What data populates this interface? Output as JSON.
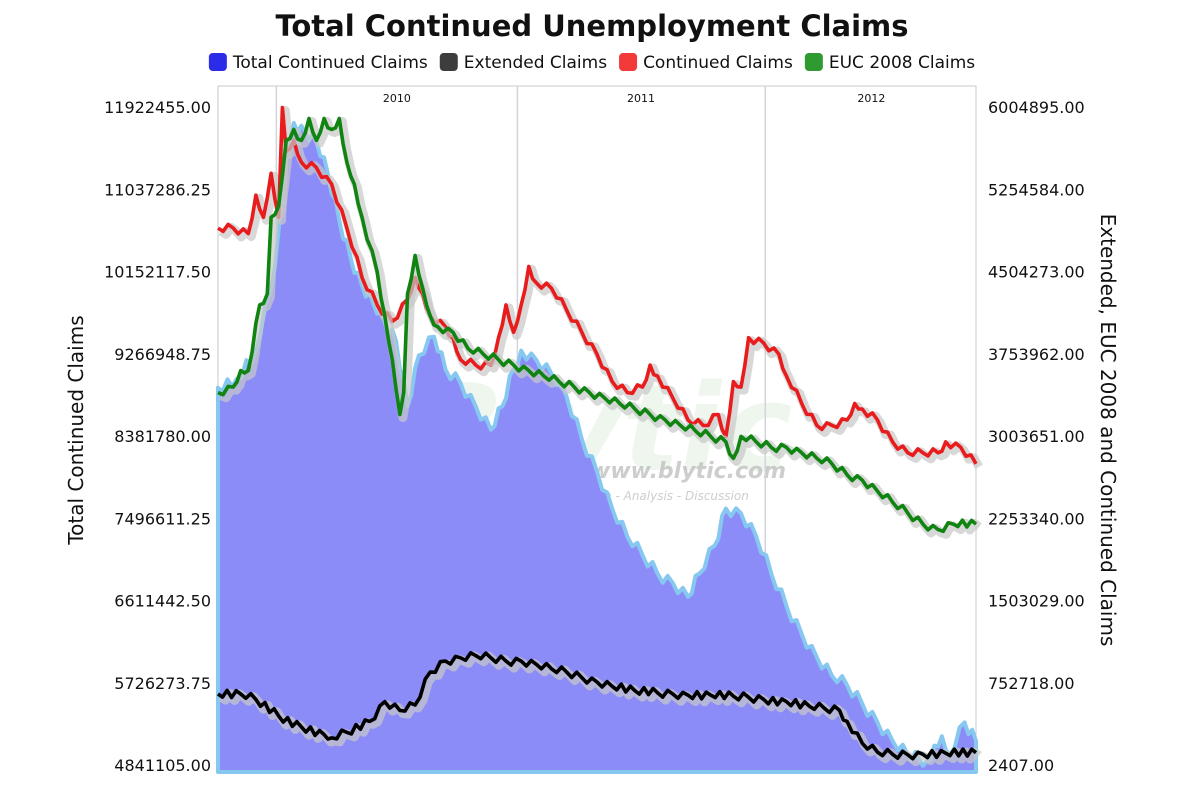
{
  "chart_data": {
    "type": "line",
    "title": "Total Continued Unemployment Claims",
    "ylabel_left": "Total Continued Claims",
    "ylabel_right": "Extended, EUC 2008 and Continued Claims",
    "x_period_labels": [
      "2010",
      "2011",
      "2012"
    ],
    "x_range": [
      "2009-09",
      "2012-11"
    ],
    "left_ticks": [
      "11922455.00",
      "11037286.25",
      "10152117.50",
      "9266948.75",
      "8381780.00",
      "7496611.25",
      "6611442.50",
      "5726273.75",
      "4841105.00"
    ],
    "right_ticks": [
      "6004895.00",
      "5254584.00",
      "4504273.00",
      "3753962.00",
      "3003651.00",
      "2253340.00",
      "1503029.00",
      "752718.00",
      "2407.00"
    ],
    "ylim_left": [
      4841105,
      11922455
    ],
    "ylim_right": [
      2407,
      6004895
    ],
    "legend_position": "top",
    "watermark": {
      "text": "Blytic",
      "url": "www.blytic.com",
      "tagline": "Data - Analysis - Discussion"
    },
    "series": [
      {
        "name": "Total Continued Claims",
        "axis": "left",
        "style": "area",
        "color": "#8C8CF8",
        "edge_color": "#87C8F0",
        "legend_color": "#2B2BE8",
        "points": [
          [
            0.0,
            8900000
          ],
          [
            0.025,
            9000000
          ],
          [
            0.05,
            9300000
          ],
          [
            0.075,
            10200000
          ],
          [
            0.09,
            11500000
          ],
          [
            0.1,
            11750000
          ],
          [
            0.115,
            11650000
          ],
          [
            0.13,
            11550000
          ],
          [
            0.145,
            11200000
          ],
          [
            0.16,
            10700000
          ],
          [
            0.175,
            10300000
          ],
          [
            0.19,
            10000000
          ],
          [
            0.205,
            9800000
          ],
          [
            0.22,
            9600000
          ],
          [
            0.235,
            9400000
          ],
          [
            0.25,
            8700000
          ],
          [
            0.265,
            9250000
          ],
          [
            0.285,
            9450000
          ],
          [
            0.3,
            9100000
          ],
          [
            0.32,
            8950000
          ],
          [
            0.34,
            8700000
          ],
          [
            0.36,
            8450000
          ],
          [
            0.375,
            8700000
          ],
          [
            0.39,
            9100000
          ],
          [
            0.4,
            9300000
          ],
          [
            0.42,
            9200000
          ],
          [
            0.44,
            9050000
          ],
          [
            0.46,
            8800000
          ],
          [
            0.48,
            8350000
          ],
          [
            0.5,
            8000000
          ],
          [
            0.52,
            7600000
          ],
          [
            0.54,
            7300000
          ],
          [
            0.56,
            7100000
          ],
          [
            0.58,
            6900000
          ],
          [
            0.6,
            6800000
          ],
          [
            0.62,
            6650000
          ],
          [
            0.635,
            6900000
          ],
          [
            0.655,
            7200000
          ],
          [
            0.67,
            7600000
          ],
          [
            0.69,
            7550000
          ],
          [
            0.71,
            7300000
          ],
          [
            0.73,
            6900000
          ],
          [
            0.75,
            6550000
          ],
          [
            0.77,
            6250000
          ],
          [
            0.79,
            6000000
          ],
          [
            0.81,
            5800000
          ],
          [
            0.83,
            5700000
          ],
          [
            0.85,
            5500000
          ],
          [
            0.87,
            5300000
          ],
          [
            0.89,
            5100000
          ],
          [
            0.91,
            4950000
          ],
          [
            0.925,
            4900000
          ],
          [
            0.935,
            4880000
          ],
          [
            0.945,
            5050000
          ],
          [
            0.955,
            5150000
          ],
          [
            0.965,
            4950000
          ],
          [
            0.985,
            5300000
          ],
          [
            1.0,
            5100000
          ]
        ]
      },
      {
        "name": "Extended Claims",
        "axis": "right",
        "style": "line",
        "color": "#000000",
        "legend_color": "#3D3D3D",
        "points": [
          [
            0.0,
            650000
          ],
          [
            0.03,
            650000
          ],
          [
            0.05,
            600000
          ],
          [
            0.08,
            450000
          ],
          [
            0.11,
            350000
          ],
          [
            0.14,
            280000
          ],
          [
            0.15,
            250000
          ],
          [
            0.17,
            300000
          ],
          [
            0.2,
            400000
          ],
          [
            0.22,
            580000
          ],
          [
            0.24,
            500000
          ],
          [
            0.26,
            550000
          ],
          [
            0.28,
            850000
          ],
          [
            0.3,
            950000
          ],
          [
            0.32,
            980000
          ],
          [
            0.34,
            1000000
          ],
          [
            0.36,
            980000
          ],
          [
            0.38,
            950000
          ],
          [
            0.4,
            950000
          ],
          [
            0.42,
            920000
          ],
          [
            0.44,
            880000
          ],
          [
            0.46,
            850000
          ],
          [
            0.48,
            800000
          ],
          [
            0.5,
            760000
          ],
          [
            0.52,
            720000
          ],
          [
            0.55,
            680000
          ],
          [
            0.58,
            660000
          ],
          [
            0.6,
            650000
          ],
          [
            0.62,
            640000
          ],
          [
            0.65,
            640000
          ],
          [
            0.68,
            630000
          ],
          [
            0.7,
            620000
          ],
          [
            0.72,
            600000
          ],
          [
            0.75,
            580000
          ],
          [
            0.78,
            540000
          ],
          [
            0.8,
            520000
          ],
          [
            0.82,
            500000
          ],
          [
            0.83,
            400000
          ],
          [
            0.85,
            200000
          ],
          [
            0.87,
            120000
          ],
          [
            0.89,
            100000
          ],
          [
            0.91,
            95000
          ],
          [
            0.93,
            100000
          ],
          [
            0.96,
            110000
          ],
          [
            1.0,
            115000
          ]
        ]
      },
      {
        "name": "Continued Claims",
        "axis": "right",
        "style": "line",
        "color": "#E81C1C",
        "legend_color": "#F23A3A",
        "points": [
          [
            0.0,
            4900000
          ],
          [
            0.02,
            4900000
          ],
          [
            0.04,
            4850000
          ],
          [
            0.05,
            5200000
          ],
          [
            0.06,
            5000000
          ],
          [
            0.07,
            5400000
          ],
          [
            0.08,
            5000000
          ],
          [
            0.085,
            6000000
          ],
          [
            0.09,
            5600000
          ],
          [
            0.1,
            5700000
          ],
          [
            0.11,
            5500000
          ],
          [
            0.13,
            5450000
          ],
          [
            0.15,
            5300000
          ],
          [
            0.17,
            4900000
          ],
          [
            0.19,
            4450000
          ],
          [
            0.21,
            4200000
          ],
          [
            0.23,
            4050000
          ],
          [
            0.25,
            4250000
          ],
          [
            0.26,
            4450000
          ],
          [
            0.27,
            4300000
          ],
          [
            0.28,
            4100000
          ],
          [
            0.3,
            4000000
          ],
          [
            0.31,
            3900000
          ],
          [
            0.32,
            3700000
          ],
          [
            0.34,
            3650000
          ],
          [
            0.36,
            3650000
          ],
          [
            0.37,
            3900000
          ],
          [
            0.38,
            4200000
          ],
          [
            0.39,
            3950000
          ],
          [
            0.4,
            4200000
          ],
          [
            0.41,
            4550000
          ],
          [
            0.42,
            4400000
          ],
          [
            0.44,
            4350000
          ],
          [
            0.46,
            4150000
          ],
          [
            0.48,
            3950000
          ],
          [
            0.5,
            3750000
          ],
          [
            0.52,
            3500000
          ],
          [
            0.54,
            3400000
          ],
          [
            0.56,
            3450000
          ],
          [
            0.57,
            3650000
          ],
          [
            0.58,
            3550000
          ],
          [
            0.6,
            3350000
          ],
          [
            0.62,
            3150000
          ],
          [
            0.64,
            3100000
          ],
          [
            0.66,
            3200000
          ],
          [
            0.67,
            3000000
          ],
          [
            0.68,
            3500000
          ],
          [
            0.69,
            3450000
          ],
          [
            0.7,
            3900000
          ],
          [
            0.72,
            3850000
          ],
          [
            0.74,
            3750000
          ],
          [
            0.75,
            3550000
          ],
          [
            0.77,
            3300000
          ],
          [
            0.79,
            3100000
          ],
          [
            0.81,
            3100000
          ],
          [
            0.83,
            3150000
          ],
          [
            0.84,
            3300000
          ],
          [
            0.85,
            3250000
          ],
          [
            0.87,
            3150000
          ],
          [
            0.89,
            2950000
          ],
          [
            0.91,
            2850000
          ],
          [
            0.93,
            2850000
          ],
          [
            0.95,
            2850000
          ],
          [
            0.96,
            2950000
          ],
          [
            0.98,
            2900000
          ],
          [
            1.0,
            2750000
          ]
        ]
      },
      {
        "name": "EUC 2008 Claims",
        "axis": "right",
        "style": "line",
        "color": "#108410",
        "legend_color": "#2F9A2F",
        "points": [
          [
            0.0,
            3400000
          ],
          [
            0.02,
            3450000
          ],
          [
            0.03,
            3600000
          ],
          [
            0.04,
            3600000
          ],
          [
            0.055,
            4200000
          ],
          [
            0.065,
            4300000
          ],
          [
            0.07,
            5000000
          ],
          [
            0.08,
            5100000
          ],
          [
            0.09,
            5700000
          ],
          [
            0.1,
            5800000
          ],
          [
            0.11,
            5700000
          ],
          [
            0.12,
            5900000
          ],
          [
            0.13,
            5700000
          ],
          [
            0.14,
            5900000
          ],
          [
            0.15,
            5800000
          ],
          [
            0.16,
            5900000
          ],
          [
            0.17,
            5500000
          ],
          [
            0.18,
            5300000
          ],
          [
            0.19,
            5000000
          ],
          [
            0.21,
            4500000
          ],
          [
            0.22,
            4100000
          ],
          [
            0.23,
            3700000
          ],
          [
            0.24,
            3200000
          ],
          [
            0.245,
            3400000
          ],
          [
            0.25,
            4300000
          ],
          [
            0.26,
            4650000
          ],
          [
            0.27,
            4350000
          ],
          [
            0.28,
            4100000
          ],
          [
            0.29,
            4000000
          ],
          [
            0.31,
            3950000
          ],
          [
            0.33,
            3800000
          ],
          [
            0.35,
            3750000
          ],
          [
            0.37,
            3700000
          ],
          [
            0.39,
            3650000
          ],
          [
            0.41,
            3600000
          ],
          [
            0.43,
            3550000
          ],
          [
            0.45,
            3500000
          ],
          [
            0.47,
            3450000
          ],
          [
            0.49,
            3400000
          ],
          [
            0.51,
            3350000
          ],
          [
            0.53,
            3300000
          ],
          [
            0.55,
            3250000
          ],
          [
            0.57,
            3200000
          ],
          [
            0.59,
            3150000
          ],
          [
            0.61,
            3100000
          ],
          [
            0.63,
            3050000
          ],
          [
            0.65,
            3000000
          ],
          [
            0.67,
            2950000
          ],
          [
            0.68,
            2800000
          ],
          [
            0.69,
            3000000
          ],
          [
            0.71,
            2950000
          ],
          [
            0.73,
            2900000
          ],
          [
            0.75,
            2900000
          ],
          [
            0.77,
            2850000
          ],
          [
            0.79,
            2800000
          ],
          [
            0.81,
            2750000
          ],
          [
            0.83,
            2650000
          ],
          [
            0.85,
            2600000
          ],
          [
            0.87,
            2500000
          ],
          [
            0.89,
            2400000
          ],
          [
            0.91,
            2300000
          ],
          [
            0.93,
            2200000
          ],
          [
            0.95,
            2150000
          ],
          [
            0.97,
            2200000
          ],
          [
            1.0,
            2200000
          ]
        ]
      }
    ]
  }
}
